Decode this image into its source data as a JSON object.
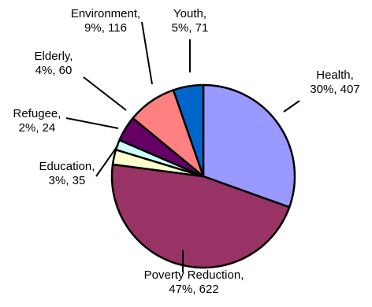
{
  "chart_data": {
    "type": "pie",
    "slices": [
      {
        "name": "Health",
        "percent": "30%",
        "value": 407,
        "color": "#9999ff"
      },
      {
        "name": "Poverty Reduction",
        "percent": "47%",
        "value": 622,
        "color": "#993366"
      },
      {
        "name": "Education",
        "percent": "3%",
        "value": 35,
        "color": "#ffffcc"
      },
      {
        "name": "Refugee",
        "percent": "2%",
        "value": 24,
        "color": "#ccffff"
      },
      {
        "name": "Elderly",
        "percent": "4%",
        "value": 60,
        "color": "#660066"
      },
      {
        "name": "Environment",
        "percent": "9%",
        "value": 116,
        "color": "#ff8080"
      },
      {
        "name": "Youth",
        "percent": "5%",
        "value": 71,
        "color": "#0066cc"
      }
    ]
  }
}
